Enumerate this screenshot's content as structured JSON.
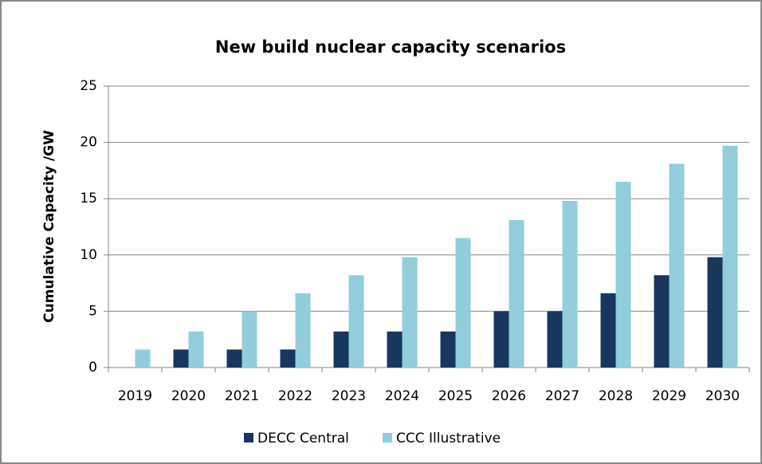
{
  "chart_data": {
    "type": "bar",
    "title": "New build nuclear capacity scenarios",
    "y_label": "Cumulative Capacity /GW",
    "categories": [
      "2019",
      "2020",
      "2021",
      "2022",
      "2023",
      "2024",
      "2025",
      "2026",
      "2027",
      "2028",
      "2029",
      "2030"
    ],
    "series": [
      {
        "name": "DECC Central",
        "color": "#17375e",
        "values": [
          0,
          1.6,
          1.6,
          1.6,
          3.2,
          3.2,
          3.2,
          5.0,
          5.0,
          6.6,
          8.2,
          9.8
        ]
      },
      {
        "name": "CCC Illustrative",
        "color": "#92cddc",
        "values": [
          1.6,
          3.2,
          5.0,
          6.6,
          8.2,
          9.8,
          11.5,
          13.1,
          14.8,
          16.5,
          18.1,
          19.7
        ]
      }
    ],
    "ylim": [
      0,
      25
    ],
    "yticks": [
      0,
      5,
      10,
      15,
      20,
      25
    ],
    "grid": true,
    "legend": "bottom"
  }
}
